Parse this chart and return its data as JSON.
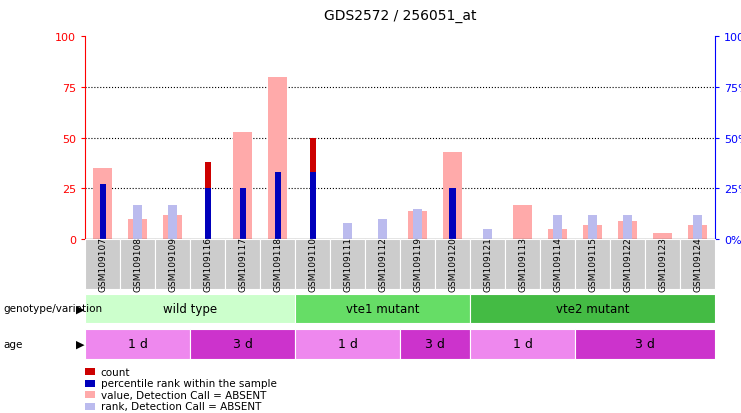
{
  "title": "GDS2572 / 256051_at",
  "samples": [
    "GSM109107",
    "GSM109108",
    "GSM109109",
    "GSM109116",
    "GSM109117",
    "GSM109118",
    "GSM109110",
    "GSM109111",
    "GSM109112",
    "GSM109119",
    "GSM109120",
    "GSM109121",
    "GSM109113",
    "GSM109114",
    "GSM109115",
    "GSM109122",
    "GSM109123",
    "GSM109124"
  ],
  "count_values": [
    0,
    0,
    0,
    38,
    0,
    0,
    50,
    0,
    0,
    0,
    0,
    0,
    0,
    0,
    0,
    0,
    0,
    0
  ],
  "percentile_values": [
    27,
    0,
    0,
    25,
    25,
    33,
    33,
    0,
    0,
    0,
    25,
    0,
    0,
    0,
    0,
    0,
    0,
    0
  ],
  "value_absent": [
    35,
    10,
    12,
    0,
    53,
    80,
    0,
    0,
    0,
    14,
    43,
    0,
    17,
    5,
    7,
    9,
    3,
    7
  ],
  "rank_absent": [
    0,
    17,
    17,
    0,
    0,
    0,
    0,
    8,
    10,
    15,
    0,
    5,
    0,
    12,
    12,
    12,
    0,
    12
  ],
  "count_color": "#cc0000",
  "percentile_color": "#0000bb",
  "value_absent_color": "#ffaaaa",
  "rank_absent_color": "#bbbbee",
  "ylim": [
    0,
    100
  ],
  "yticks": [
    0,
    25,
    50,
    75,
    100
  ],
  "genotype_groups": [
    {
      "label": "wild type",
      "start": 0,
      "end": 6,
      "color": "#ccffcc"
    },
    {
      "label": "vte1 mutant",
      "start": 6,
      "end": 11,
      "color": "#66dd66"
    },
    {
      "label": "vte2 mutant",
      "start": 11,
      "end": 18,
      "color": "#44bb44"
    }
  ],
  "age_groups": [
    {
      "label": "1 d",
      "start": 0,
      "end": 3,
      "color": "#ee88ee"
    },
    {
      "label": "3 d",
      "start": 3,
      "end": 6,
      "color": "#cc33cc"
    },
    {
      "label": "1 d",
      "start": 6,
      "end": 9,
      "color": "#ee88ee"
    },
    {
      "label": "3 d",
      "start": 9,
      "end": 11,
      "color": "#cc33cc"
    },
    {
      "label": "1 d",
      "start": 11,
      "end": 14,
      "color": "#ee88ee"
    },
    {
      "label": "3 d",
      "start": 14,
      "end": 18,
      "color": "#cc33cc"
    }
  ]
}
